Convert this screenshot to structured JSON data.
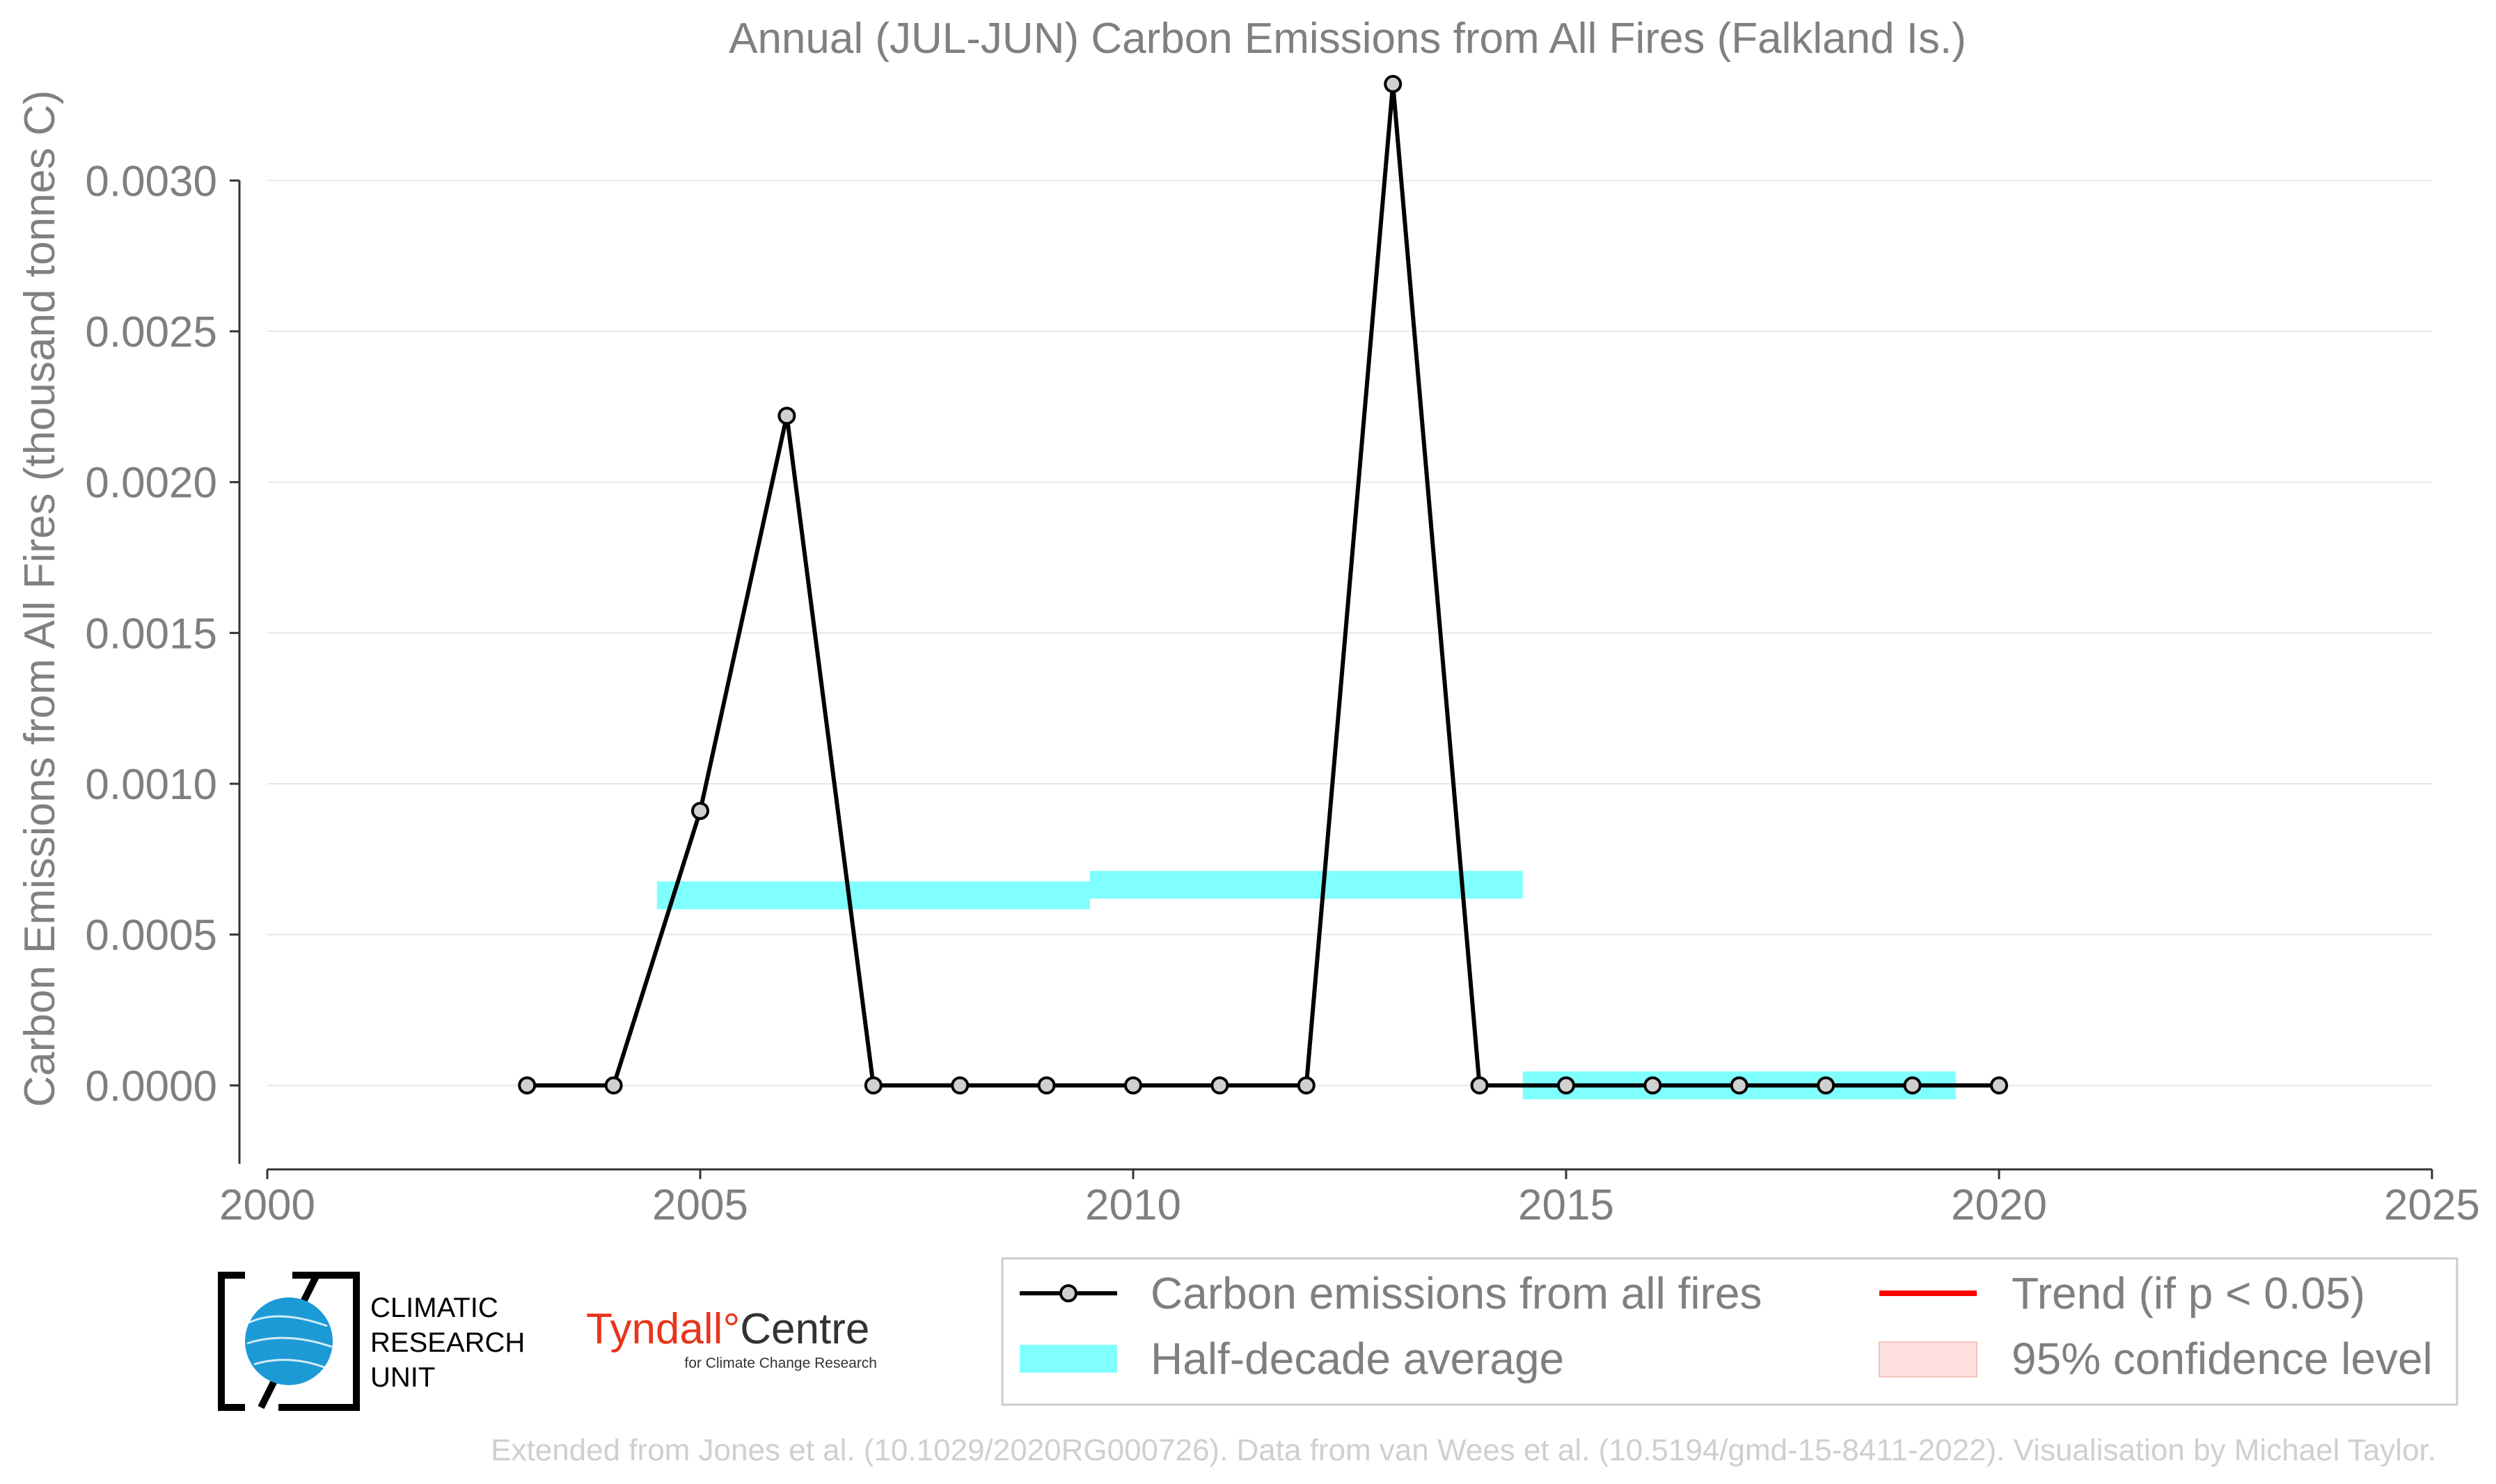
{
  "chart_data": {
    "type": "line",
    "title": "Annual (JUL-JUN) Carbon Emissions from All Fires (Falkland Is.)",
    "ylabel": "Carbon Emissions from All Fires (thousand tonnes C)",
    "xlabel": "",
    "xlim": [
      2000,
      2025
    ],
    "ylim": [
      -0.00026,
      0.00334
    ],
    "xticks": [
      "2000",
      "2005",
      "2010",
      "2015",
      "2020",
      "2025"
    ],
    "yticks": [
      "0.0000",
      "0.0005",
      "0.0010",
      "0.0015",
      "0.0020",
      "0.0025",
      "0.0030"
    ],
    "grid": "horizontal",
    "legend_position": "bottom-right",
    "series": [
      {
        "name": "Carbon emissions from all fires",
        "color": "#000000",
        "marker_fill": "#d0d0d0",
        "x": [
          2003,
          2004,
          2005,
          2006,
          2007,
          2008,
          2009,
          2010,
          2011,
          2012,
          2013,
          2014,
          2015,
          2016,
          2017,
          2018,
          2019,
          2020
        ],
        "values": [
          0.0,
          0.0,
          0.00091,
          0.00222,
          0.0,
          0.0,
          0.0,
          0.0,
          0.0,
          0.0,
          0.00332,
          0.0,
          0.0,
          0.0,
          0.0,
          0.0,
          0.0,
          0.0
        ]
      }
    ],
    "half_decade_average": {
      "name": "Half-decade average",
      "color": "#7ffffe",
      "segments": [
        {
          "x_start": 2004.5,
          "x_end": 2009.5,
          "value": 0.00063
        },
        {
          "x_start": 2009.5,
          "x_end": 2014.5,
          "value": 0.000665
        },
        {
          "x_start": 2014.5,
          "x_end": 2019.5,
          "value": 0.0
        }
      ]
    },
    "legend": [
      {
        "label": "Carbon emissions from all fires",
        "kind": "line-marker",
        "color": "#000000"
      },
      {
        "label": "Half-decade average",
        "kind": "band",
        "color": "#7ffffe"
      },
      {
        "label": "Trend (if p < 0.05)",
        "kind": "line",
        "color": "#ff0000"
      },
      {
        "label": "95% confidence level",
        "kind": "patch",
        "color": "#fde0dd"
      }
    ]
  },
  "logos": {
    "cru_lines": [
      "CLIMATIC",
      "RESEARCH",
      "UNIT"
    ],
    "tyndall_main": "Tyndall",
    "tyndall_degree": "°",
    "tyndall_centre": "Centre",
    "tyndall_sub": "for Climate Change Research"
  },
  "credit": "Extended from Jones et al. (10.1029/2020RG000726). Data from van Wees et al. (10.5194/gmd-15-8411-2022). Visualisation by Michael Taylor."
}
